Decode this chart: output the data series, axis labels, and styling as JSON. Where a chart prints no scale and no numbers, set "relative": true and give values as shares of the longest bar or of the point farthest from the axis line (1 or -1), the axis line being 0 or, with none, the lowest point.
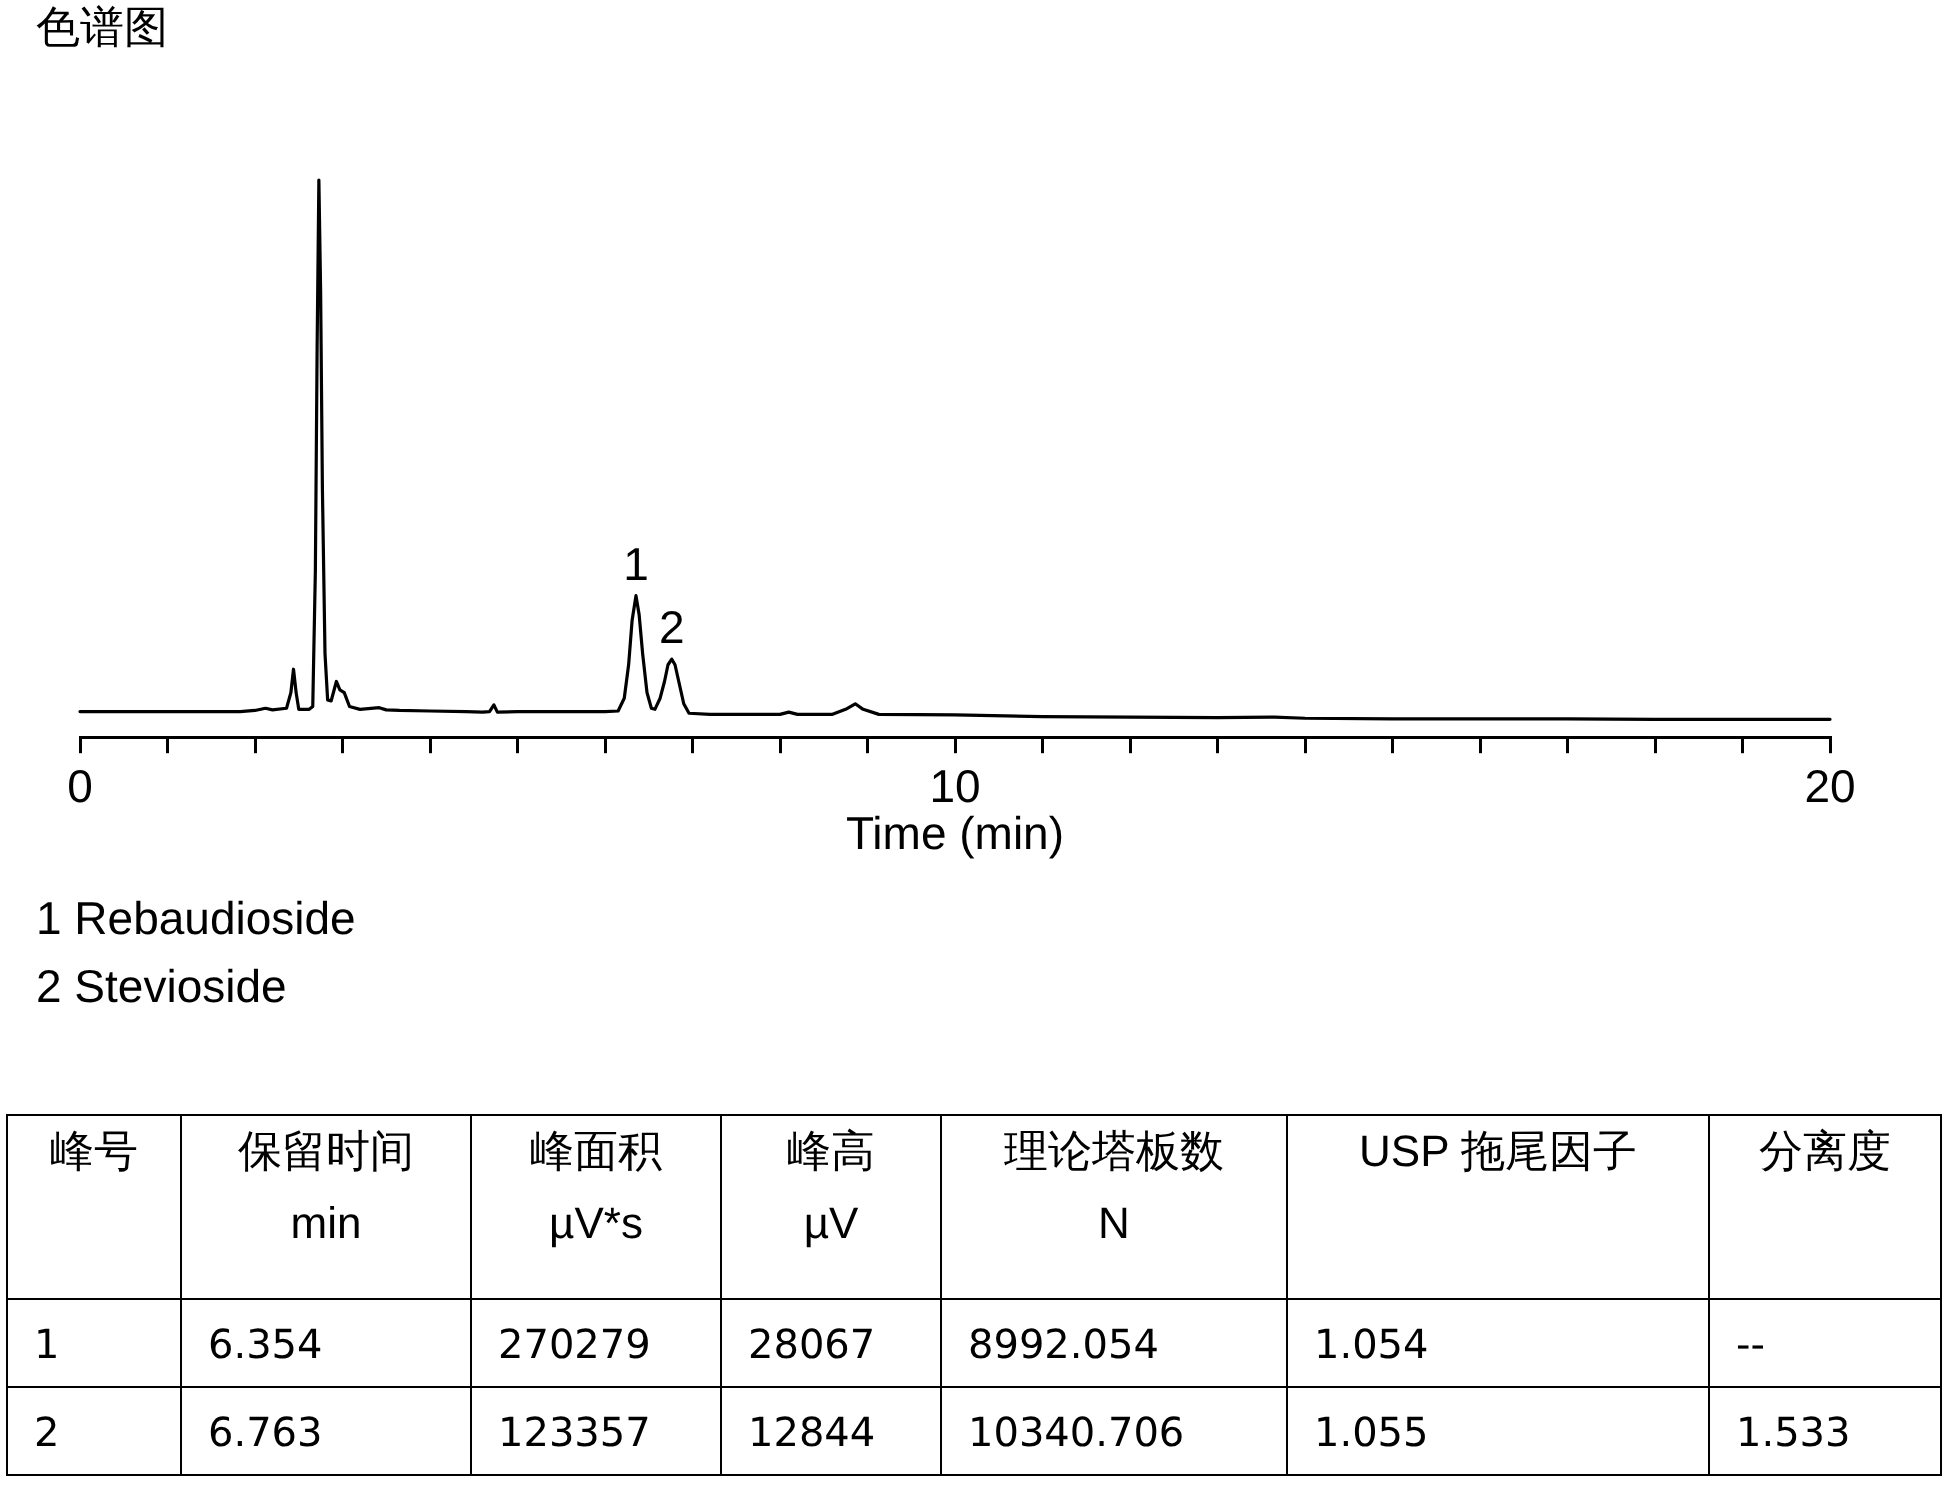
{
  "chart_data": [
    {
      "type": "line",
      "title": "色谱图",
      "xlabel": "Time (min)",
      "relative": true,
      "x": [
        0,
        1,
        1.83,
        2,
        2.12,
        2.2,
        2.36,
        2.41,
        2.44,
        2.47,
        2.5,
        2.62,
        2.66,
        2.69,
        2.71,
        2.73,
        2.75,
        2.77,
        2.8,
        2.83,
        2.87,
        2.93,
        2.97,
        3.02,
        3.08,
        3.2,
        3.42,
        3.5,
        3.65,
        4,
        4.41,
        4.6,
        4.68,
        4.73,
        4.77,
        5,
        5.5,
        6,
        6.15,
        6.22,
        6.27,
        6.31,
        6.354,
        6.39,
        6.43,
        6.48,
        6.53,
        6.57,
        6.63,
        6.68,
        6.72,
        6.763,
        6.8,
        6.85,
        6.9,
        6.96,
        7.2,
        7.5,
        8,
        8.1,
        8.2,
        8.6,
        8.75,
        8.86,
        8.95,
        9.13,
        10,
        11,
        12,
        13,
        13.65,
        14,
        15,
        16,
        17,
        18,
        19,
        20
      ],
      "series": [
        {
          "color": "#000000",
          "values": [
            0.046,
            0.046,
            0.046,
            0.048,
            0.052,
            0.049,
            0.052,
            0.08,
            0.122,
            0.08,
            0.05,
            0.05,
            0.055,
            0.3,
            0.7,
            1,
            0.8,
            0.45,
            0.15,
            0.067,
            0.065,
            0.1,
            0.085,
            0.08,
            0.055,
            0.05,
            0.053,
            0.049,
            0.048,
            0.047,
            0.046,
            0.045,
            0.046,
            0.058,
            0.045,
            0.046,
            0.046,
            0.046,
            0.047,
            0.07,
            0.13,
            0.21,
            0.254,
            0.22,
            0.15,
            0.08,
            0.052,
            0.05,
            0.07,
            0.1,
            0.13,
            0.14,
            0.13,
            0.095,
            0.06,
            0.043,
            0.041,
            0.041,
            0.041,
            0.045,
            0.041,
            0.041,
            0.05,
            0.06,
            0.05,
            0.041,
            0.04,
            0.037,
            0.036,
            0.035,
            0.036,
            0.034,
            0.033,
            0.033,
            0.033,
            0.032,
            0.032,
            0.032
          ]
        }
      ],
      "xlim": [
        0,
        20
      ],
      "xticks": [
        0,
        {
          "value": 1,
          "label": null
        },
        {
          "value": 2,
          "label": null
        },
        {
          "value": 3,
          "label": null
        },
        {
          "value": 4,
          "label": null
        },
        {
          "value": 5,
          "label": null
        },
        {
          "value": 6,
          "label": null
        },
        {
          "value": 7,
          "label": null
        },
        {
          "value": 8,
          "label": null
        },
        {
          "value": 9,
          "label": null
        },
        10,
        {
          "value": 11,
          "label": null
        },
        {
          "value": 12,
          "label": null
        },
        {
          "value": 13,
          "label": null
        },
        {
          "value": 14,
          "label": null
        },
        {
          "value": 15,
          "label": null
        },
        {
          "value": 16,
          "label": null
        },
        {
          "value": 17,
          "label": null
        },
        {
          "value": 18,
          "label": null
        },
        {
          "value": 19,
          "label": null
        },
        20
      ],
      "annotations": [
        {
          "text": "1",
          "x": 6.354,
          "y": 0.254
        },
        {
          "text": "2",
          "x": 6.763,
          "y": 0.14
        },
        "1 Rebaudioside",
        "2 Stevioside"
      ]
    },
    {
      "type": "other",
      "annotations": [
        "峰号",
        "保留时间\nmin",
        "峰面积\nµV*s",
        "峰高\nµV",
        "理论塔板数\nN",
        "USP 拖尾因子",
        "分离度",
        "1",
        "6.354",
        "270279",
        "28067",
        "8992.054",
        "1.054",
        "--",
        "2",
        "6.763",
        "123357",
        "12844",
        "10340.706",
        "1.055",
        "1.533"
      ]
    }
  ]
}
